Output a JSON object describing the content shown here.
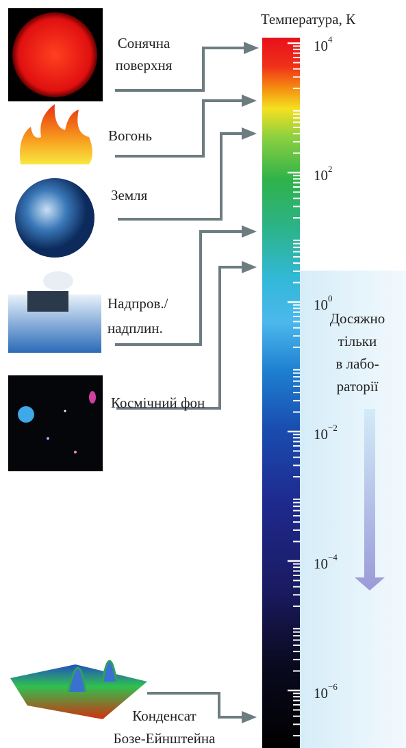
{
  "title": "Температура, К",
  "scale": {
    "ticks": [
      {
        "value": 10000,
        "base": "10",
        "exponent": "4"
      },
      {
        "value": 100,
        "base": "10",
        "exponent": "2"
      },
      {
        "value": 1,
        "base": "10",
        "exponent": "0"
      },
      {
        "value": 0.01,
        "base": "10",
        "exponent": "−2"
      },
      {
        "value": 0.0001,
        "base": "10",
        "exponent": "−4"
      },
      {
        "value": 1e-06,
        "base": "10",
        "exponent": "−6"
      }
    ],
    "log_scale": true
  },
  "items": [
    {
      "lines": [
        "Сонячна",
        "поверхня"
      ]
    },
    {
      "lines": [
        "Вогонь"
      ]
    },
    {
      "lines": [
        "Земля"
      ]
    },
    {
      "lines": [
        "Надпров./",
        "надплин."
      ]
    },
    {
      "lines": [
        "Космічний фон"
      ]
    },
    {
      "lines": [
        "Конденсат",
        "Бозе-Ейнштейна"
      ]
    }
  ],
  "lab_note": {
    "lines": [
      "Досяжно",
      "тільки",
      "в лабо-",
      "раторії"
    ]
  }
}
